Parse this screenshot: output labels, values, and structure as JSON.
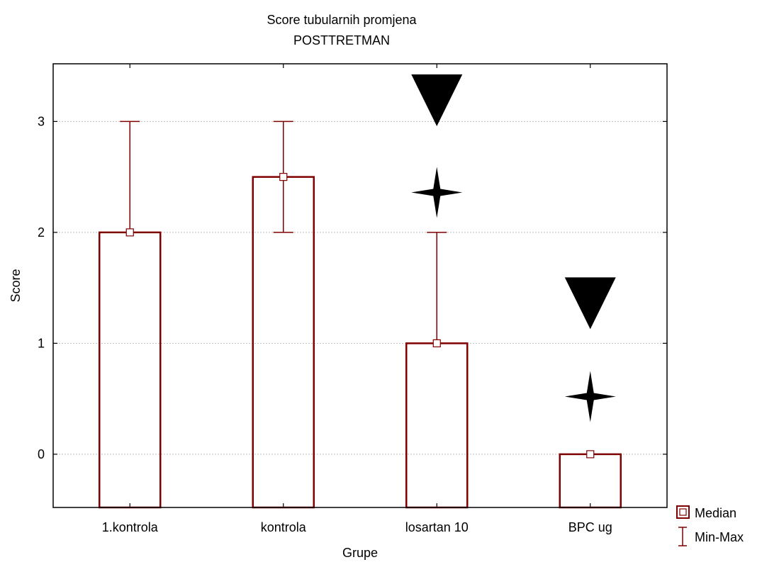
{
  "chart_data": {
    "type": "bar",
    "title": "Score tubularnih promjena",
    "subtitle": "POSTTRETMAN",
    "xlabel": "Grupe",
    "ylabel": "Score",
    "ylim": [
      -0.48,
      3.52
    ],
    "yticks": [
      0,
      1,
      2,
      3
    ],
    "grid": true,
    "legend_position": "bottom-right",
    "categories": [
      "1.kontrola",
      "kontrola",
      "losartan 10",
      "BPC ug"
    ],
    "series": [
      {
        "name": "Median",
        "values": [
          2,
          2.5,
          1,
          0
        ]
      },
      {
        "name": "Min-Max",
        "min": [
          2,
          2,
          1,
          0
        ],
        "max": [
          3,
          3,
          2,
          0
        ]
      }
    ],
    "annotations": [
      {
        "category": "losartan 10",
        "marker": "triangle-down",
        "y": 3.13
      },
      {
        "category": "losartan 10",
        "marker": "star4",
        "y": 2.36
      },
      {
        "category": "BPC ug",
        "marker": "triangle-down",
        "y": 1.3
      },
      {
        "category": "BPC ug",
        "marker": "star4",
        "y": 0.52
      }
    ],
    "colors": {
      "bar": "#7f0000",
      "marker_fill": "#ffffff",
      "annotation": "#000000",
      "grid": "#bfbfbf"
    }
  }
}
